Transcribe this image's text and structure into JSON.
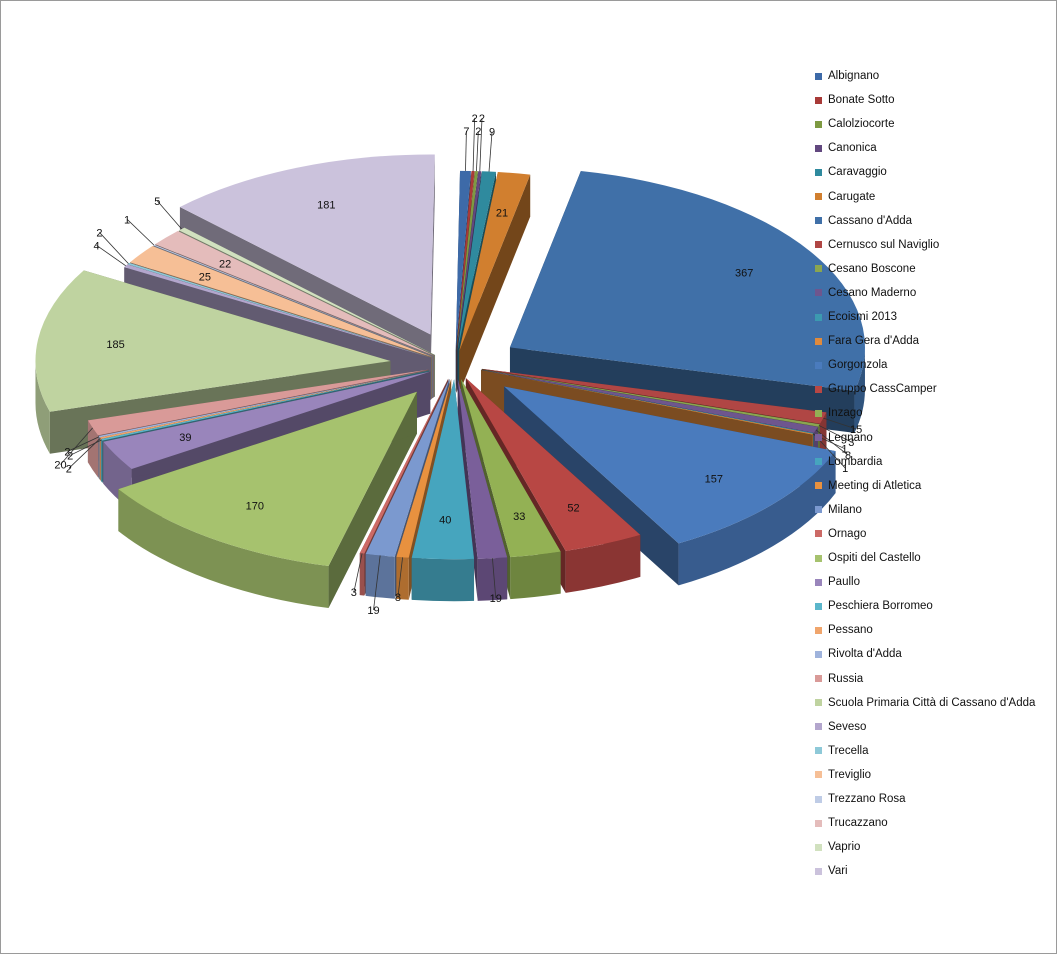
{
  "chart_data": {
    "type": "pie",
    "style": "3d-exploded",
    "legend_position": "right",
    "slices": [
      {
        "label": "Albignano",
        "value": 7,
        "color": "#3d6aa8"
      },
      {
        "label": "Bonate Sotto",
        "value": 2,
        "color": "#a83a38"
      },
      {
        "label": "Calolziocorte",
        "value": 2,
        "color": "#7e9a42"
      },
      {
        "label": "Canonica",
        "value": 2,
        "color": "#62487f"
      },
      {
        "label": "Caravaggio",
        "value": 9,
        "color": "#2f8a9e"
      },
      {
        "label": "Carugate",
        "value": 21,
        "color": "#d17f2f"
      },
      {
        "label": "Cassano d'Adda",
        "value": 367,
        "color": "#4070a8"
      },
      {
        "label": "Cernusco sul Naviglio",
        "value": 15,
        "color": "#b04644"
      },
      {
        "label": "Cesano Boscone",
        "value": 3,
        "color": "#8aa550"
      },
      {
        "label": "Cesano Maderno",
        "value": 8,
        "color": "#6e568e"
      },
      {
        "label": "Ecoismi 2013",
        "value": 1,
        "color": "#3c9ab0"
      },
      {
        "label": "Fara Gera d'Adda",
        "value": 1,
        "color": "#e08a3c"
      },
      {
        "label": "Gorgonzola",
        "value": 157,
        "color": "#4a7bbd"
      },
      {
        "label": "Gruppo CassCamper",
        "value": 52,
        "color": "#b84744"
      },
      {
        "label": "Inzago",
        "value": 33,
        "color": "#93b154"
      },
      {
        "label": "Legnano",
        "value": 19,
        "color": "#7a5f9a"
      },
      {
        "label": "Lombardia",
        "value": 40,
        "color": "#46a5be"
      },
      {
        "label": "Meeting di Atletica",
        "value": 8,
        "color": "#e8913f"
      },
      {
        "label": "Milano",
        "value": 19,
        "color": "#7b99cf"
      },
      {
        "label": "Ornago",
        "value": 3,
        "color": "#cc6a66"
      },
      {
        "label": "Ospiti del Castello",
        "value": 170,
        "color": "#a6c26e"
      },
      {
        "label": "Paullo",
        "value": 39,
        "color": "#9985bb"
      },
      {
        "label": "Peschiera Borromeo",
        "value": 2,
        "color": "#5bb6cb"
      },
      {
        "label": "Pessano",
        "value": 2,
        "color": "#f0a56c"
      },
      {
        "label": "Rivolta d'Adda",
        "value": 2,
        "color": "#9fb3dc"
      },
      {
        "label": "Russia",
        "value": 20,
        "color": "#d99a98"
      },
      {
        "label": "Scuola Primaria Città di Cassano d'Adda",
        "value": 185,
        "color": "#bfd3a0"
      },
      {
        "label": "Seveso",
        "value": 4,
        "color": "#b3a6cd"
      },
      {
        "label": "Trecella",
        "value": 2,
        "color": "#8ec9d8"
      },
      {
        "label": "Treviglio",
        "value": 25,
        "color": "#f6bf96"
      },
      {
        "label": "Trezzano Rosa",
        "value": 1,
        "color": "#bfcce6"
      },
      {
        "label": "Trucazzano",
        "value": 22,
        "color": "#e4bcbb"
      },
      {
        "label": "Vaprio",
        "value": 5,
        "color": "#d1e1bf"
      },
      {
        "label": "Vari",
        "value": 181,
        "color": "#cbc2dc"
      }
    ]
  }
}
